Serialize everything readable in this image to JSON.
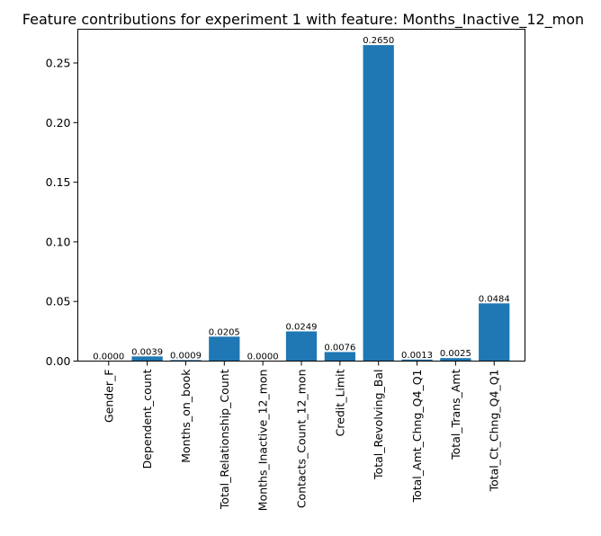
{
  "chart_data": {
    "type": "bar",
    "title": "Feature contributions for experiment 1 with feature: Months_Inactive_12_mon",
    "xlabel": "",
    "ylabel": "",
    "categories": [
      "Gender_F",
      "Dependent_count",
      "Months_on_book",
      "Total_Relationship_Count",
      "Months_Inactive_12_mon",
      "Contacts_Count_12_mon",
      "Credit_Limit",
      "Total_Revolving_Bal",
      "Total_Amt_Chng_Q4_Q1",
      "Total_Trans_Amt",
      "Total_Ct_Chng_Q4_Q1"
    ],
    "values": [
      0.0,
      0.0039,
      0.0009,
      0.0205,
      0.0,
      0.0249,
      0.0076,
      0.265,
      0.0013,
      0.0025,
      0.0484
    ],
    "data_labels": [
      "0.0000",
      "0.0039",
      "0.0009",
      "0.0205",
      "0.0000",
      "0.0249",
      "0.0076",
      "0.2650",
      "0.0013",
      "0.0025",
      "0.0484"
    ],
    "ylim": [
      0,
      0.2783
    ],
    "yticks": [
      0.0,
      0.05,
      0.1,
      0.15,
      0.2,
      0.25
    ],
    "ytick_labels": [
      "0.00",
      "0.05",
      "0.10",
      "0.15",
      "0.20",
      "0.25"
    ],
    "grid": false,
    "legend": "none",
    "bar_color": "#1f77b4"
  }
}
